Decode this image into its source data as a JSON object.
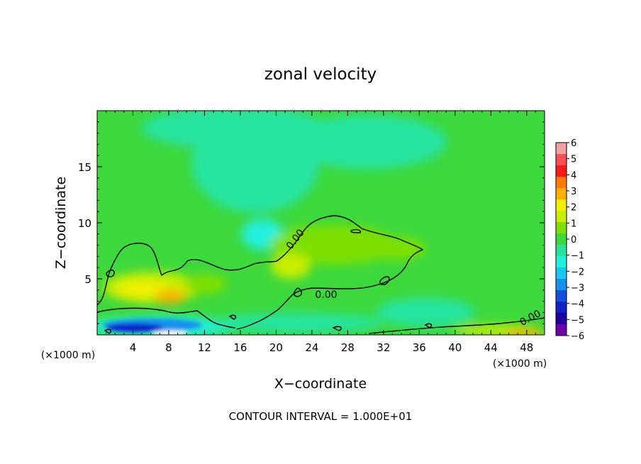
{
  "chart_data": {
    "type": "heatmap",
    "title": "zonal velocity",
    "xlabel": "X−coordinate",
    "ylabel": "Z−coordinate",
    "x_unit": "(×1000 m)",
    "y_unit": "(×1000 m)",
    "x_range": [
      0,
      50
    ],
    "y_range": [
      0,
      20
    ],
    "x_ticks": [
      "4",
      "8",
      "12",
      "16",
      "20",
      "24",
      "28",
      "32",
      "36",
      "40",
      "44",
      "48"
    ],
    "x_tick_values": [
      4,
      8,
      12,
      16,
      20,
      24,
      28,
      32,
      36,
      40,
      44,
      48
    ],
    "y_ticks": [
      "5",
      "10",
      "15"
    ],
    "y_tick_values": [
      5,
      10,
      15
    ],
    "footnote": "CONTOUR INTERVAL = 1.000E+01",
    "contour_labels": [
      "0.00",
      "0.00",
      "0.00"
    ],
    "colorbar": {
      "labels": [
        "6",
        "5",
        "4",
        "3",
        "2",
        "1",
        "0",
        "−1",
        "−2",
        "−3",
        "−4",
        "−5",
        "−6"
      ],
      "values": [
        6,
        5,
        4,
        3,
        2,
        1,
        0,
        -1,
        -2,
        -3,
        -4,
        -5,
        -6
      ],
      "colors": [
        "#f7a0a0",
        "#ff5050",
        "#ff1a1a",
        "#ff7a00",
        "#ffb000",
        "#f0f000",
        "#c8ee00",
        "#7ee000",
        "#3cd83c",
        "#26e4a0",
        "#20f0dc",
        "#18c8f0",
        "#1890f0",
        "#1450e0",
        "#1020c8",
        "#2000a0",
        "#7000a8"
      ]
    },
    "field_colors": {
      "background": "#3cd83c",
      "neg_weak": "#26e4a0",
      "neg_mid": "#20f0dc",
      "neg_strong": "#1890f0",
      "neg_very": "#1020c8",
      "pos_weak": "#7ee000",
      "pos_mid": "#c8ee00",
      "pos_strong": "#f0f000",
      "pos_very": "#ffb000"
    }
  }
}
